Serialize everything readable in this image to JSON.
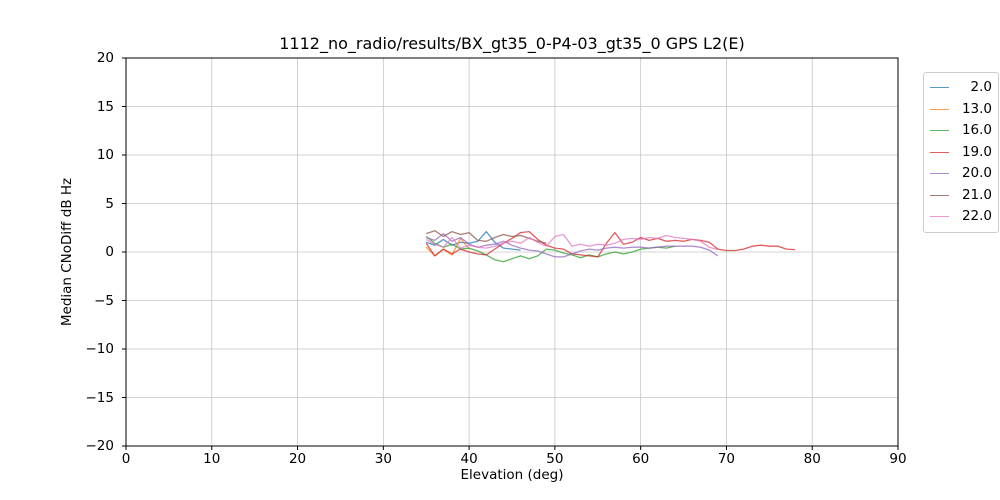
{
  "chart_data": {
    "type": "line",
    "title": "1112_no_radio/results/BX_gt35_0-P4-03_gt35_0 GPS L2(E)",
    "xlabel": "Elevation (deg)",
    "ylabel": "Median CNoDiff dB Hz",
    "xlim": [
      0,
      90
    ],
    "ylim": [
      -20,
      20
    ],
    "grid": true,
    "legend_position": "outside-upper-right",
    "line_opacity": 0.75,
    "colors": {
      "grid": "#c6c6c6",
      "frame": "#000000",
      "background": "#ffffff",
      "text": "#000000"
    },
    "xticks": [
      {
        "v": 0,
        "label": "0"
      },
      {
        "v": 10,
        "label": "10"
      },
      {
        "v": 20,
        "label": "20"
      },
      {
        "v": 30,
        "label": "30"
      },
      {
        "v": 40,
        "label": "40"
      },
      {
        "v": 50,
        "label": "50"
      },
      {
        "v": 60,
        "label": "60"
      },
      {
        "v": 70,
        "label": "70"
      },
      {
        "v": 80,
        "label": "80"
      },
      {
        "v": 90,
        "label": "90"
      }
    ],
    "yticks": [
      {
        "v": -20,
        "label": "−20"
      },
      {
        "v": -15,
        "label": "−15"
      },
      {
        "v": -10,
        "label": "−10"
      },
      {
        "v": -5,
        "label": "−5"
      },
      {
        "v": 0,
        "label": "0"
      },
      {
        "v": 5,
        "label": "5"
      },
      {
        "v": 10,
        "label": "10"
      },
      {
        "v": 15,
        "label": "15"
      },
      {
        "v": 20,
        "label": "20"
      }
    ],
    "series": [
      {
        "label": "2.0",
        "color": "#1f77b4",
        "x": [
          35,
          36,
          37,
          38,
          39,
          40,
          41,
          42,
          43,
          44,
          45,
          46
        ],
        "y": [
          1.0,
          0.7,
          1.3,
          0.7,
          1.0,
          0.9,
          1.1,
          2.1,
          1.0,
          0.4,
          0.3,
          0.2
        ]
      },
      {
        "label": "13.0",
        "color": "#ff7f0e",
        "x": [
          35,
          36,
          37,
          38,
          39,
          40
        ],
        "y": [
          0.5,
          -0.4,
          0.3,
          -0.3,
          1.4,
          0.3
        ]
      },
      {
        "label": "16.0",
        "color": "#2ca02c",
        "x": [
          35,
          36,
          37,
          38,
          39,
          40,
          41,
          42,
          43,
          44,
          45,
          46,
          47,
          48,
          49,
          50,
          51,
          52,
          53,
          54,
          55,
          56,
          57,
          58,
          59,
          60,
          61,
          62,
          63,
          64
        ],
        "y": [
          1.6,
          0.9,
          0.5,
          0.8,
          0.3,
          0.4,
          0.1,
          -0.3,
          -0.8,
          -1.0,
          -0.7,
          -0.4,
          -0.7,
          -0.4,
          0.3,
          0.2,
          -0.1,
          -0.3,
          -0.6,
          -0.3,
          -0.5,
          -0.2,
          0.0,
          -0.2,
          0.0,
          0.3,
          0.4,
          0.5,
          0.4,
          0.6
        ]
      },
      {
        "label": "19.0",
        "color": "#d62728",
        "x": [
          35,
          36,
          37,
          38,
          39,
          40,
          41,
          42,
          43,
          44,
          45,
          46,
          47,
          48,
          49,
          50,
          51,
          52,
          53,
          54,
          55,
          56,
          57,
          58,
          59,
          60,
          61,
          62,
          63,
          64,
          65,
          66,
          67,
          68,
          69,
          70,
          71,
          72,
          73,
          74,
          75,
          76,
          77,
          78
        ],
        "y": [
          0.9,
          -0.4,
          0.3,
          -0.2,
          0.3,
          0.0,
          -0.2,
          -0.3,
          0.3,
          0.9,
          1.4,
          2.0,
          2.1,
          1.3,
          0.7,
          0.4,
          0.3,
          -0.2,
          -0.3,
          -0.4,
          -0.5,
          0.9,
          2.0,
          0.8,
          1.0,
          1.5,
          1.2,
          1.4,
          1.1,
          1.2,
          1.1,
          1.3,
          1.2,
          1.0,
          0.3,
          0.15,
          0.15,
          0.3,
          0.6,
          0.7,
          0.6,
          0.6,
          0.3,
          0.25
        ]
      },
      {
        "label": "20.0",
        "color": "#9467bd",
        "x": [
          35,
          36,
          37,
          38,
          39,
          40,
          41,
          42,
          43,
          44,
          45,
          46,
          47,
          48,
          49,
          50,
          51,
          52,
          53,
          54,
          55,
          56,
          57,
          58,
          59,
          60,
          61,
          62,
          63,
          64,
          65,
          66,
          67,
          68,
          69
        ],
        "y": [
          1.5,
          1.2,
          1.9,
          1.1,
          1.5,
          0.8,
          0.5,
          0.7,
          0.8,
          1.1,
          0.7,
          0.4,
          0.2,
          0.1,
          -0.2,
          -0.5,
          -0.5,
          -0.2,
          0.1,
          0.3,
          0.2,
          0.4,
          0.5,
          0.4,
          0.5,
          0.5,
          0.4,
          0.5,
          0.6,
          0.6,
          0.6,
          0.6,
          0.5,
          0.2,
          -0.4
        ]
      },
      {
        "label": "21.0",
        "color": "#8c564b",
        "x": [
          35,
          36,
          37,
          38,
          39,
          40,
          41,
          42,
          43,
          44,
          45,
          46,
          47,
          48,
          49
        ],
        "y": [
          1.9,
          2.2,
          1.6,
          2.1,
          1.8,
          2.0,
          1.2,
          1.1,
          1.5,
          1.8,
          1.6,
          1.7,
          1.4,
          1.1,
          0.9
        ]
      },
      {
        "label": "22.0",
        "color": "#e377c2",
        "x": [
          35,
          36,
          37,
          38,
          39,
          40,
          41,
          42,
          43,
          44,
          45,
          46,
          47,
          48,
          49,
          50,
          51,
          52,
          53,
          54,
          55,
          56,
          57,
          58,
          59,
          60,
          61,
          62,
          63,
          64,
          65,
          66,
          67,
          68,
          69
        ],
        "y": [
          1.3,
          0.8,
          0.5,
          1.5,
          0.4,
          0.7,
          0.5,
          0.4,
          0.6,
          0.9,
          1.1,
          0.9,
          1.5,
          1.0,
          0.6,
          1.6,
          1.8,
          0.6,
          0.8,
          0.6,
          0.8,
          0.7,
          0.9,
          1.3,
          1.4,
          1.3,
          1.5,
          1.4,
          1.7,
          1.5,
          1.4,
          1.3,
          1.1,
          0.5,
          0.25
        ]
      }
    ]
  }
}
